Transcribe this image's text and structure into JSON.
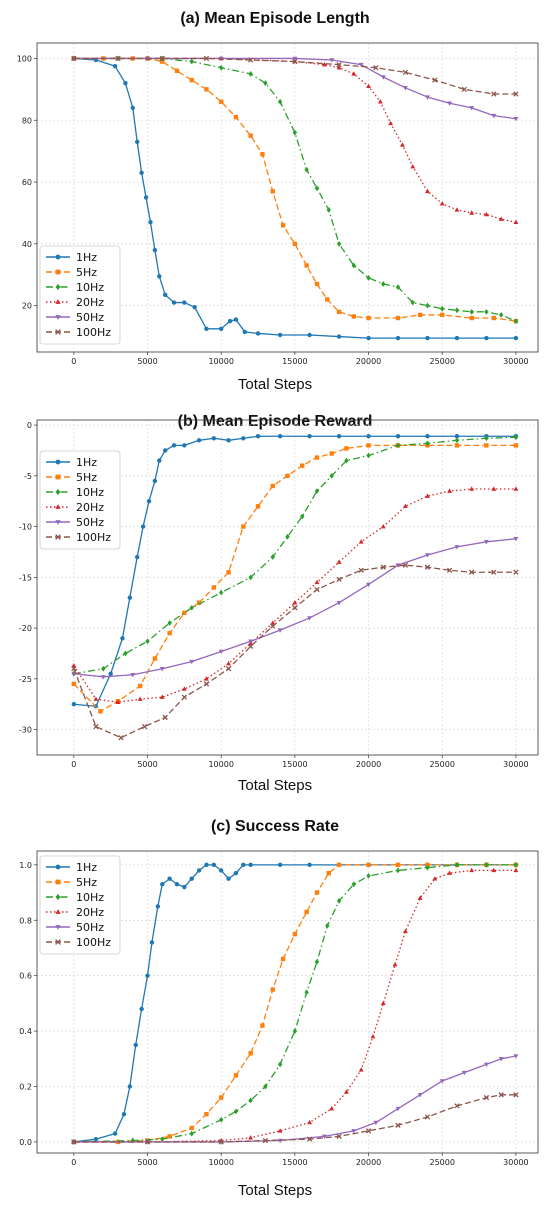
{
  "chart_data": [
    {
      "type": "line",
      "title": "(a) Mean Episode Length",
      "xlabel": "Total Steps",
      "ylabel": "",
      "xlim": [
        -2500,
        31500
      ],
      "ylim": [
        5,
        105
      ],
      "xticks": [
        0,
        5000,
        10000,
        15000,
        20000,
        25000,
        30000
      ],
      "yticks": [
        20,
        40,
        60,
        80,
        100
      ],
      "grid": true,
      "legend": "bottom-left",
      "series": [
        {
          "name": "1Hz",
          "color": "#1f77b4",
          "dash": "",
          "marker": "circle",
          "x": [
            0,
            1500,
            2800,
            3500,
            4000,
            4300,
            4600,
            4900,
            5200,
            5500,
            5800,
            6200,
            6800,
            7500,
            8200,
            9000,
            10000,
            10600,
            11000,
            11600,
            12500,
            14000,
            16000,
            18000,
            20000,
            22000,
            24000,
            26000,
            28000,
            30000
          ],
          "y": [
            100,
            99.5,
            97.5,
            92,
            84,
            73,
            63,
            55,
            47,
            38,
            29.5,
            23.5,
            21,
            21,
            19.5,
            12.5,
            12.5,
            15,
            15.5,
            11.5,
            11,
            10.5,
            10.5,
            10,
            9.5,
            9.5,
            9.5,
            9.5,
            9.5,
            9.5
          ]
        },
        {
          "name": "5Hz",
          "color": "#ff7f0e",
          "dash": "6,3",
          "marker": "square",
          "x": [
            0,
            2000,
            4000,
            5000,
            6000,
            7000,
            8000,
            9000,
            10000,
            11000,
            12000,
            12800,
            13500,
            14200,
            15000,
            15800,
            16500,
            17200,
            18000,
            19000,
            20000,
            22000,
            23500,
            25000,
            27000,
            28500,
            30000
          ],
          "y": [
            100,
            100,
            100,
            100,
            99,
            96,
            93,
            90,
            86,
            81,
            75,
            69,
            57,
            46,
            40,
            33,
            27,
            22,
            18,
            16.5,
            16,
            16,
            17,
            17,
            16,
            16,
            15
          ]
        },
        {
          "name": "10Hz",
          "color": "#2ca02c",
          "dash": "7,3,1.5,3",
          "marker": "diamond",
          "x": [
            0,
            3000,
            6000,
            8000,
            10000,
            12000,
            13000,
            14000,
            15000,
            15800,
            16500,
            17300,
            18000,
            19000,
            20000,
            21000,
            22000,
            23000,
            24000,
            25000,
            26000,
            27000,
            28000,
            29000,
            30000
          ],
          "y": [
            100,
            100,
            100,
            99,
            97,
            95,
            92,
            86,
            76,
            64,
            58,
            51,
            40,
            33,
            29,
            27,
            26,
            21,
            20,
            19,
            18.5,
            18,
            18,
            17,
            15
          ]
        },
        {
          "name": "20Hz",
          "color": "#d62728",
          "dash": "1.5,2.5",
          "marker": "triangle",
          "x": [
            0,
            5000,
            10000,
            15000,
            17000,
            18000,
            19000,
            20000,
            20800,
            21500,
            22300,
            23000,
            24000,
            25000,
            26000,
            27000,
            28000,
            29000,
            30000
          ],
          "y": [
            100,
            100,
            100,
            99,
            98,
            97,
            95,
            91,
            86,
            79,
            72,
            65,
            57,
            53,
            51,
            50,
            49.5,
            48,
            47
          ]
        },
        {
          "name": "50Hz",
          "color": "#9467bd",
          "dash": "",
          "marker": "tri-down",
          "x": [
            0,
            5000,
            10000,
            15000,
            17500,
            19500,
            21000,
            22500,
            24000,
            25500,
            27000,
            28500,
            30000
          ],
          "y": [
            100,
            100,
            100,
            100,
            99.5,
            98,
            94,
            90.5,
            87.5,
            85.5,
            84,
            81.5,
            80.5
          ]
        },
        {
          "name": "100Hz",
          "color": "#8c564b",
          "dash": "6,3",
          "marker": "x",
          "x": [
            0,
            3000,
            6000,
            9000,
            12000,
            15000,
            18000,
            20500,
            22500,
            24500,
            26500,
            28500,
            30000
          ],
          "y": [
            100,
            100,
            100,
            100,
            99.5,
            99,
            98,
            97,
            95.5,
            93,
            90,
            88.5,
            88.5
          ]
        }
      ]
    },
    {
      "type": "line",
      "title": "(b) Mean Episode Reward",
      "xlabel": "Total Steps",
      "ylabel": "",
      "xlim": [
        -2500,
        31500
      ],
      "ylim": [
        -32.5,
        0.5
      ],
      "xticks": [
        0,
        5000,
        10000,
        15000,
        20000,
        25000,
        30000
      ],
      "yticks": [
        -30,
        -25,
        -20,
        -15,
        -10,
        -5,
        0
      ],
      "grid": true,
      "legend": "top-left",
      "series": [
        {
          "name": "1Hz",
          "color": "#1f77b4",
          "dash": "",
          "marker": "circle",
          "x": [
            0,
            1500,
            2500,
            3300,
            3800,
            4300,
            4700,
            5100,
            5500,
            5800,
            6200,
            6800,
            7500,
            8500,
            9500,
            10500,
            11500,
            12500,
            14000,
            16000,
            18000,
            20000,
            22000,
            24000,
            26000,
            28000,
            30000
          ],
          "y": [
            -27.5,
            -27.7,
            -24.5,
            -21,
            -17,
            -13,
            -10,
            -7.5,
            -5.5,
            -3.5,
            -2.5,
            -2,
            -2,
            -1.5,
            -1.3,
            -1.5,
            -1.3,
            -1.1,
            -1.1,
            -1.1,
            -1.1,
            -1.1,
            -1.1,
            -1.1,
            -1.1,
            -1.1,
            -1.1
          ]
        },
        {
          "name": "5Hz",
          "color": "#ff7f0e",
          "dash": "6,3",
          "marker": "square",
          "x": [
            0,
            1800,
            3000,
            4500,
            5500,
            6500,
            7500,
            8500,
            9500,
            10500,
            11500,
            12500,
            13500,
            14500,
            15500,
            16500,
            17500,
            18500,
            20000,
            22000,
            24000,
            26000,
            28000,
            30000
          ],
          "y": [
            -25.5,
            -28.2,
            -27.2,
            -25.7,
            -23,
            -20.5,
            -18.5,
            -17.5,
            -16,
            -14.5,
            -10,
            -8,
            -6,
            -5,
            -4,
            -3.2,
            -2.8,
            -2.3,
            -2,
            -2,
            -2,
            -2,
            -2,
            -2
          ]
        },
        {
          "name": "10Hz",
          "color": "#2ca02c",
          "dash": "7,3,1.5,3",
          "marker": "diamond",
          "x": [
            0,
            2000,
            3500,
            5000,
            6500,
            8000,
            10000,
            12000,
            13500,
            14500,
            15500,
            16500,
            17500,
            18500,
            20000,
            22000,
            24000,
            26000,
            28000,
            30000
          ],
          "y": [
            -24.5,
            -24,
            -22.5,
            -21.3,
            -19.5,
            -18,
            -16.5,
            -15,
            -13,
            -11,
            -9,
            -6.5,
            -5,
            -3.5,
            -3,
            -2,
            -1.8,
            -1.5,
            -1.3,
            -1.2
          ]
        },
        {
          "name": "20Hz",
          "color": "#d62728",
          "dash": "1.5,2.5",
          "marker": "triangle",
          "x": [
            0,
            1500,
            3000,
            4500,
            6000,
            7500,
            9000,
            10500,
            12000,
            13500,
            15000,
            16500,
            18000,
            19500,
            21000,
            22500,
            24000,
            25500,
            27000,
            28500,
            30000
          ],
          "y": [
            -23.7,
            -27,
            -27.3,
            -27,
            -26.8,
            -26,
            -25,
            -23.5,
            -21.5,
            -19.5,
            -17.5,
            -15.5,
            -13.5,
            -11.5,
            -10,
            -8,
            -7,
            -6.5,
            -6.3,
            -6.3,
            -6.3
          ]
        },
        {
          "name": "50Hz",
          "color": "#9467bd",
          "dash": "",
          "marker": "tri-down",
          "x": [
            0,
            2000,
            4000,
            6000,
            8000,
            10000,
            12000,
            14000,
            16000,
            18000,
            20000,
            22000,
            24000,
            26000,
            28000,
            30000
          ],
          "y": [
            -24.5,
            -24.8,
            -24.6,
            -24,
            -23.3,
            -22.3,
            -21.3,
            -20.2,
            -19,
            -17.5,
            -15.7,
            -13.8,
            -12.8,
            -12,
            -11.5,
            -11.2
          ]
        },
        {
          "name": "100Hz",
          "color": "#8c564b",
          "dash": "6,3",
          "marker": "x",
          "x": [
            0,
            1500,
            3200,
            4800,
            6200,
            7500,
            9000,
            10500,
            12000,
            13500,
            15000,
            16500,
            18000,
            19500,
            21000,
            22500,
            24000,
            25500,
            27000,
            28500,
            30000
          ],
          "y": [
            -24,
            -29.7,
            -30.8,
            -29.7,
            -28.8,
            -26.8,
            -25.5,
            -24,
            -21.8,
            -19.8,
            -18,
            -16.2,
            -15.2,
            -14.3,
            -14,
            -13.8,
            -14,
            -14.3,
            -14.5,
            -14.5,
            -14.5
          ]
        }
      ]
    },
    {
      "type": "line",
      "title": "(c) Success Rate",
      "xlabel": "Total Steps",
      "ylabel": "",
      "xlim": [
        -2500,
        31500
      ],
      "ylim": [
        -0.04,
        1.05
      ],
      "xticks": [
        0,
        5000,
        10000,
        15000,
        20000,
        25000,
        30000
      ],
      "yticks": [
        0.0,
        0.2,
        0.4,
        0.6,
        0.8,
        1.0
      ],
      "grid": true,
      "legend": "top-left",
      "series": [
        {
          "name": "1Hz",
          "color": "#1f77b4",
          "dash": "",
          "marker": "circle",
          "x": [
            0,
            1500,
            2800,
            3400,
            3800,
            4200,
            4600,
            5000,
            5300,
            5700,
            6000,
            6500,
            7000,
            7500,
            8000,
            8500,
            9000,
            9500,
            10000,
            10500,
            11000,
            11500,
            12000,
            14000,
            16000,
            18000,
            20000,
            22000,
            24000,
            26000,
            28000,
            30000
          ],
          "y": [
            0,
            0.01,
            0.03,
            0.1,
            0.2,
            0.35,
            0.48,
            0.6,
            0.72,
            0.85,
            0.93,
            0.95,
            0.93,
            0.92,
            0.95,
            0.98,
            1.0,
            1.0,
            0.98,
            0.95,
            0.97,
            1.0,
            1.0,
            1.0,
            1.0,
            1.0,
            1.0,
            1.0,
            1.0,
            1.0,
            1.0,
            1.0
          ]
        },
        {
          "name": "5Hz",
          "color": "#ff7f0e",
          "dash": "6,3",
          "marker": "square",
          "x": [
            0,
            3000,
            5000,
            6500,
            8000,
            9000,
            10000,
            11000,
            12000,
            12800,
            13500,
            14200,
            15000,
            15800,
            16500,
            17300,
            18000,
            20000,
            22000,
            24000,
            26000,
            28000,
            30000
          ],
          "y": [
            0,
            0,
            0.005,
            0.02,
            0.05,
            0.1,
            0.16,
            0.24,
            0.32,
            0.42,
            0.55,
            0.66,
            0.75,
            0.83,
            0.9,
            0.97,
            1.0,
            1.0,
            1.0,
            1.0,
            1.0,
            1.0,
            1.0
          ]
        },
        {
          "name": "10Hz",
          "color": "#2ca02c",
          "dash": "7,3,1.5,3",
          "marker": "diamond",
          "x": [
            0,
            4000,
            6000,
            8000,
            10000,
            11000,
            12000,
            13000,
            14000,
            15000,
            15800,
            16500,
            17200,
            18000,
            19000,
            20000,
            22000,
            24000,
            26000,
            28000,
            30000
          ],
          "y": [
            0,
            0.005,
            0.01,
            0.03,
            0.08,
            0.11,
            0.15,
            0.2,
            0.28,
            0.4,
            0.54,
            0.65,
            0.78,
            0.87,
            0.93,
            0.96,
            0.98,
            0.99,
            1.0,
            1.0,
            1.0
          ]
        },
        {
          "name": "20Hz",
          "color": "#d62728",
          "dash": "1.5,2.5",
          "marker": "triangle",
          "x": [
            0,
            5000,
            10000,
            12000,
            14000,
            16000,
            17500,
            18500,
            19500,
            20300,
            21000,
            21800,
            22500,
            23500,
            24500,
            25500,
            27000,
            28500,
            30000
          ],
          "y": [
            0,
            0,
            0.005,
            0.015,
            0.04,
            0.07,
            0.12,
            0.18,
            0.26,
            0.38,
            0.5,
            0.64,
            0.76,
            0.88,
            0.95,
            0.97,
            0.98,
            0.98,
            0.98
          ]
        },
        {
          "name": "50Hz",
          "color": "#9467bd",
          "dash": "",
          "marker": "tri-down",
          "x": [
            0,
            5000,
            10000,
            14000,
            17000,
            19000,
            20500,
            22000,
            23500,
            25000,
            26500,
            28000,
            29000,
            30000
          ],
          "y": [
            0,
            0,
            0,
            0.005,
            0.02,
            0.04,
            0.07,
            0.12,
            0.17,
            0.22,
            0.25,
            0.28,
            0.3,
            0.31
          ]
        },
        {
          "name": "100Hz",
          "color": "#8c564b",
          "dash": "6,3",
          "marker": "x",
          "x": [
            0,
            5000,
            10000,
            13000,
            16000,
            18000,
            20000,
            22000,
            24000,
            26000,
            28000,
            29000,
            30000
          ],
          "y": [
            0,
            0,
            0,
            0.005,
            0.01,
            0.02,
            0.04,
            0.06,
            0.09,
            0.13,
            0.16,
            0.17,
            0.17
          ]
        }
      ]
    }
  ]
}
